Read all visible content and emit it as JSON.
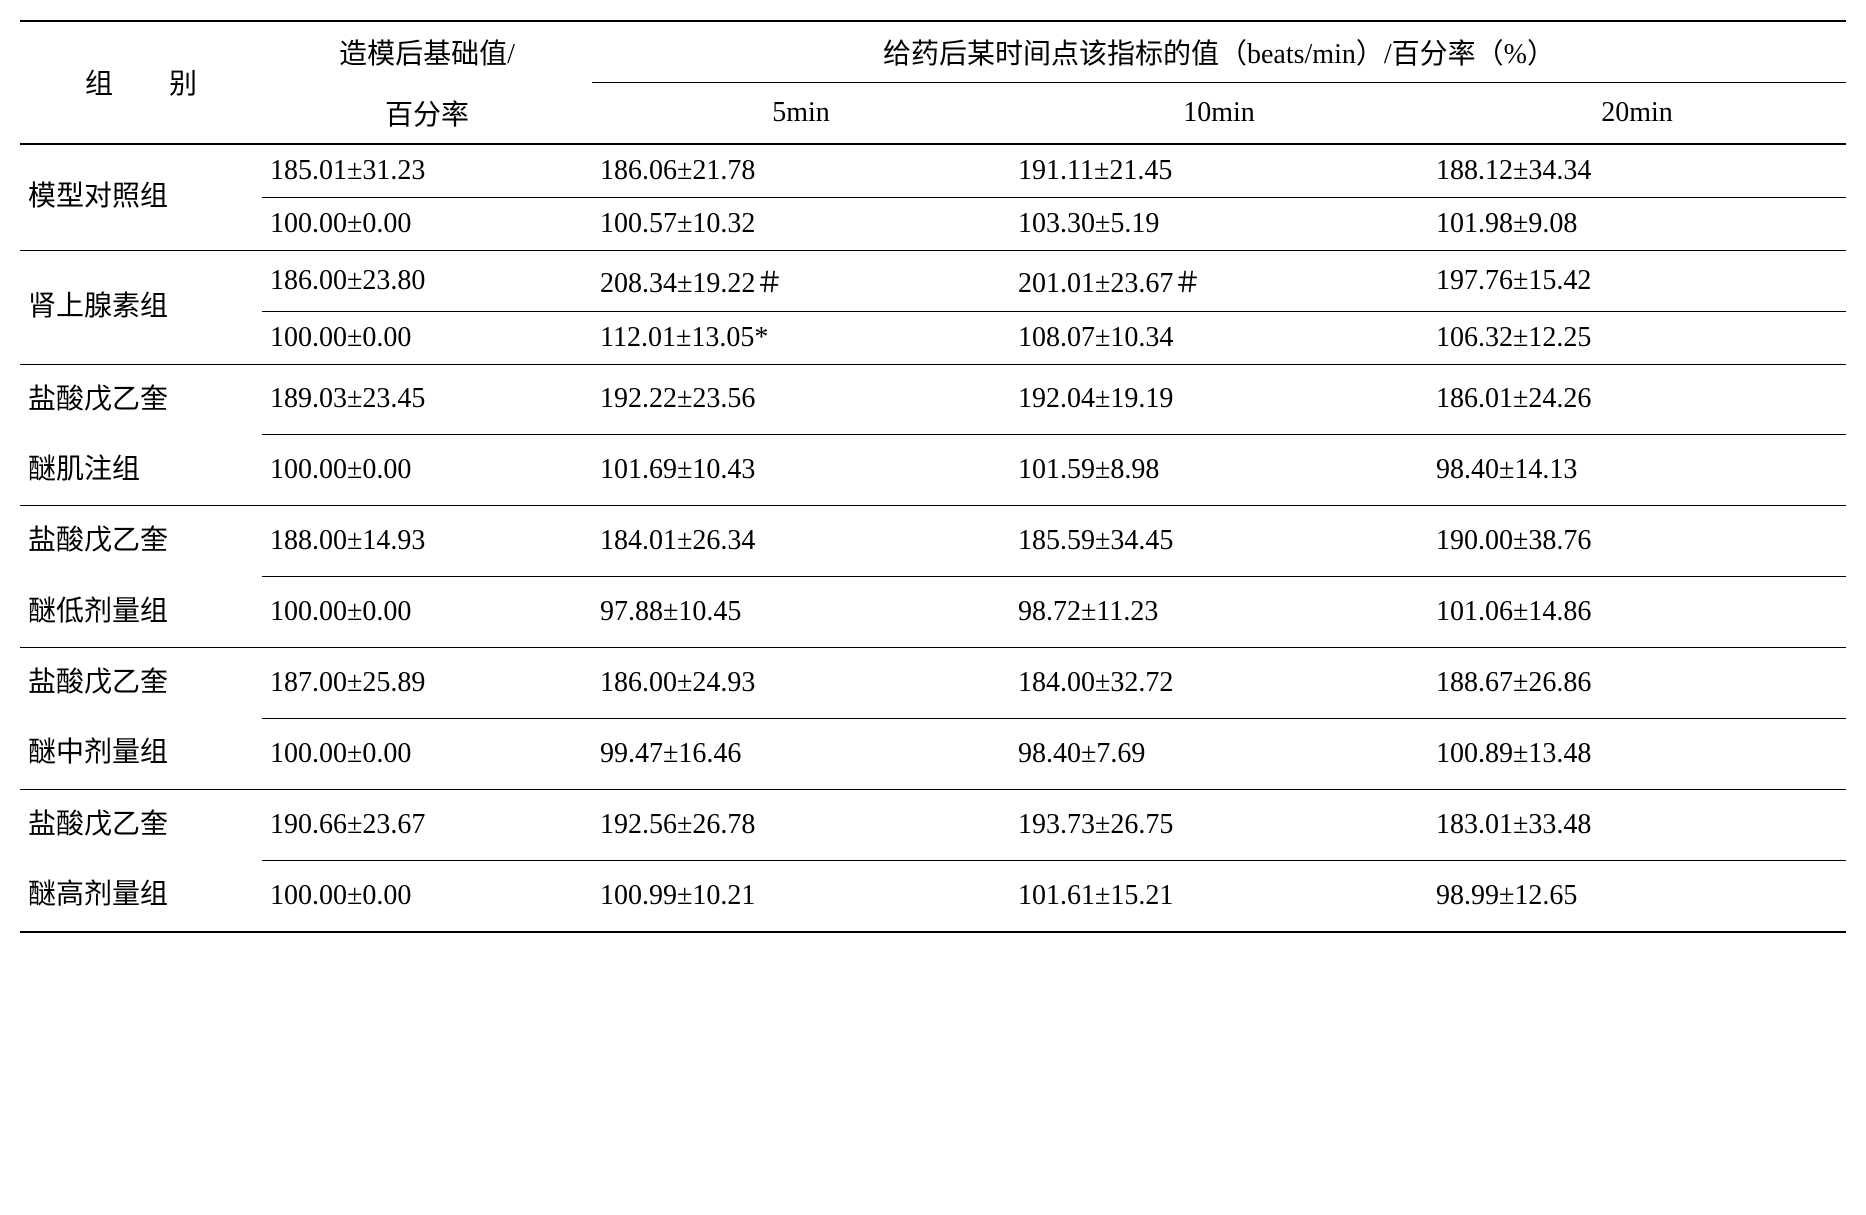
{
  "type": "table",
  "background_color": "#ffffff",
  "text_color": "#000000",
  "font_family": "SimSun",
  "font_size_pt": 21,
  "border_color": "#000000",
  "header": {
    "group_label": "组　　别",
    "baseline_line1": "造模后基础值/",
    "baseline_line2": "百分率",
    "timepoint_header": "给药后某时间点该指标的值（beats/min）/百分率（%）",
    "t5": "5min",
    "t10": "10min",
    "t20": "20min"
  },
  "groups": [
    {
      "label": "模型对照组",
      "rows": [
        {
          "base": "185.01±31.23",
          "t5": "186.06±21.78",
          "t10": "191.11±21.45",
          "t20": "188.12±34.34"
        },
        {
          "base": "100.00±0.00",
          "t5": "100.57±10.32",
          "t10": "103.30±5.19",
          "t20": "101.98±9.08"
        }
      ]
    },
    {
      "label": "肾上腺素组",
      "rows": [
        {
          "base": "186.00±23.80",
          "t5": "208.34±19.22＃",
          "t10": "201.01±23.67＃",
          "t20": "197.76±15.42"
        },
        {
          "base": "100.00±0.00",
          "t5": "112.01±13.05*",
          "t10": "108.07±10.34",
          "t20": "106.32±12.25"
        }
      ]
    },
    {
      "label_line1": "盐酸戊乙奎",
      "label_line2": "醚肌注组",
      "rows": [
        {
          "base": "189.03±23.45",
          "t5": "192.22±23.56",
          "t10": "192.04±19.19",
          "t20": "186.01±24.26"
        },
        {
          "base": "100.00±0.00",
          "t5": "101.69±10.43",
          "t10": "101.59±8.98",
          "t20": "98.40±14.13"
        }
      ]
    },
    {
      "label_line1": "盐酸戊乙奎",
      "label_line2": "醚低剂量组",
      "rows": [
        {
          "base": "188.00±14.93",
          "t5": "184.01±26.34",
          "t10": "185.59±34.45",
          "t20": "190.00±38.76"
        },
        {
          "base": "100.00±0.00",
          "t5": "97.88±10.45",
          "t10": "98.72±11.23",
          "t20": "101.06±14.86"
        }
      ]
    },
    {
      "label_line1": "盐酸戊乙奎",
      "label_line2": "醚中剂量组",
      "rows": [
        {
          "base": "187.00±25.89",
          "t5": "186.00±24.93",
          "t10": "184.00±32.72",
          "t20": "188.67±26.86"
        },
        {
          "base": "100.00±0.00",
          "t5": "99.47±16.46",
          "t10": "98.40±7.69",
          "t20": "100.89±13.48"
        }
      ]
    },
    {
      "label_line1": "盐酸戊乙奎",
      "label_line2": "醚高剂量组",
      "rows": [
        {
          "base": "190.66±23.67",
          "t5": "192.56±26.78",
          "t10": "193.73±26.75",
          "t20": "183.01±33.48"
        },
        {
          "base": "100.00±0.00",
          "t5": "100.99±10.21",
          "t10": "101.61±15.21",
          "t20": "98.99±12.65"
        }
      ]
    }
  ]
}
